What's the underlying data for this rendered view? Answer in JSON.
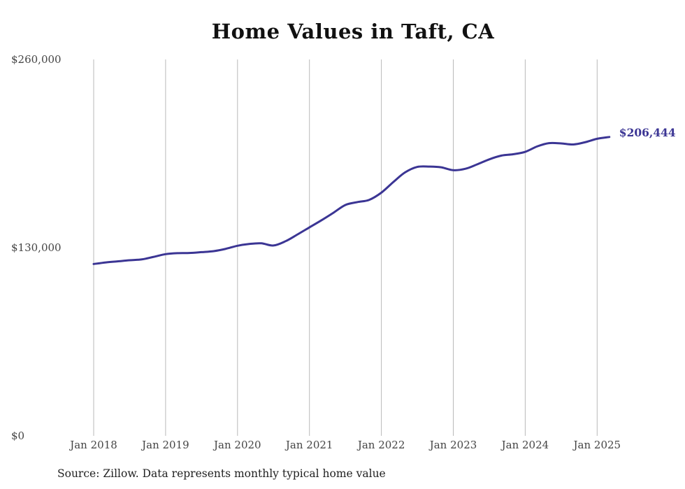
{
  "chart_data": {
    "type": "line",
    "title": "Home Values in Taft, CA",
    "xlabel": "",
    "ylabel": "",
    "ylim": [
      0,
      260000
    ],
    "y_ticks": [
      {
        "value": 0,
        "label": "$0"
      },
      {
        "value": 130000,
        "label": "$130,000"
      },
      {
        "value": 260000,
        "label": "$260,000"
      }
    ],
    "x_ticks": [
      {
        "value": 2018,
        "label": "Jan 2018"
      },
      {
        "value": 2019,
        "label": "Jan 2019"
      },
      {
        "value": 2020,
        "label": "Jan 2020"
      },
      {
        "value": 2021,
        "label": "Jan 2021"
      },
      {
        "value": 2022,
        "label": "Jan 2022"
      },
      {
        "value": 2023,
        "label": "Jan 2023"
      },
      {
        "value": 2024,
        "label": "Jan 2024"
      },
      {
        "value": 2025,
        "label": "Jan 2025"
      }
    ],
    "xlim": [
      2018,
      2025.17
    ],
    "grid": "vertical",
    "line_color": "#3b3594",
    "series": [
      {
        "points": [
          [
            2018.0,
            118700
          ],
          [
            2018.17,
            119800
          ],
          [
            2018.33,
            120500
          ],
          [
            2018.5,
            121300
          ],
          [
            2018.67,
            121900
          ],
          [
            2018.83,
            123600
          ],
          [
            2019.0,
            125500
          ],
          [
            2019.17,
            126200
          ],
          [
            2019.33,
            126300
          ],
          [
            2019.5,
            126900
          ],
          [
            2019.67,
            127600
          ],
          [
            2019.83,
            129100
          ],
          [
            2020.0,
            131300
          ],
          [
            2020.17,
            132600
          ],
          [
            2020.33,
            133000
          ],
          [
            2020.5,
            131500
          ],
          [
            2020.67,
            134500
          ],
          [
            2020.83,
            139000
          ],
          [
            2021.0,
            144000
          ],
          [
            2021.17,
            149000
          ],
          [
            2021.33,
            154000
          ],
          [
            2021.5,
            159500
          ],
          [
            2021.67,
            161500
          ],
          [
            2021.83,
            163000
          ],
          [
            2022.0,
            168000
          ],
          [
            2022.17,
            175500
          ],
          [
            2022.33,
            182000
          ],
          [
            2022.5,
            185800
          ],
          [
            2022.67,
            186000
          ],
          [
            2022.83,
            185500
          ],
          [
            2023.0,
            183500
          ],
          [
            2023.17,
            184500
          ],
          [
            2023.33,
            187500
          ],
          [
            2023.5,
            191000
          ],
          [
            2023.67,
            193600
          ],
          [
            2023.83,
            194500
          ],
          [
            2024.0,
            196200
          ],
          [
            2024.17,
            200000
          ],
          [
            2024.33,
            202200
          ],
          [
            2024.5,
            202000
          ],
          [
            2024.67,
            201300
          ],
          [
            2024.83,
            202800
          ],
          [
            2025.0,
            205200
          ],
          [
            2025.17,
            206444
          ]
        ]
      }
    ],
    "end_label": "$206,444"
  },
  "footer": {
    "source": "Source: Zillow. Data represents monthly typical home value"
  }
}
